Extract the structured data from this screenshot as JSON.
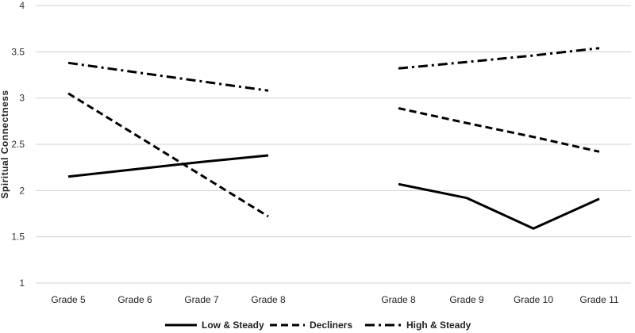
{
  "chart_data": {
    "type": "line",
    "title": "",
    "xlabel": "",
    "ylabel": "Spiritual Connectness",
    "ylim": [
      1,
      4
    ],
    "yticks": [
      "1",
      "1.5",
      "2",
      "2.5",
      "3",
      "3.5",
      "4"
    ],
    "grid": true,
    "legend_position": "bottom",
    "panels": [
      {
        "categories": [
          "Grade 5",
          "Grade 6",
          "Grade 7",
          "Grade 8"
        ],
        "series": [
          {
            "name": "Low & Steady",
            "style": "solid",
            "values": [
              2.15,
              2.23,
              2.31,
              2.38
            ]
          },
          {
            "name": "Decliners",
            "style": "dashed",
            "values": [
              3.05,
              null,
              null,
              1.72
            ]
          },
          {
            "name": "High & Steady",
            "style": "dashdot",
            "values": [
              3.38,
              null,
              null,
              3.08
            ]
          }
        ]
      },
      {
        "categories": [
          "Grade 8",
          "Grade 9",
          "Grade 10",
          "Grade 11"
        ],
        "series": [
          {
            "name": "Low & Steady",
            "style": "solid",
            "values": [
              2.07,
              1.92,
              1.59,
              1.91
            ]
          },
          {
            "name": "Decliners",
            "style": "dashed",
            "values": [
              2.89,
              2.73,
              2.58,
              2.42
            ]
          },
          {
            "name": "High & Steady",
            "style": "dashdot",
            "values": [
              3.32,
              3.39,
              3.46,
              3.54
            ]
          }
        ]
      }
    ],
    "legend": [
      {
        "name": "Low & Steady",
        "style": "solid"
      },
      {
        "name": "Decliners",
        "style": "dashed"
      },
      {
        "name": "High & Steady",
        "style": "dashdot"
      }
    ]
  },
  "colors": {
    "line": "#000000",
    "grid": "#d0d0d0",
    "text": "#222222"
  }
}
